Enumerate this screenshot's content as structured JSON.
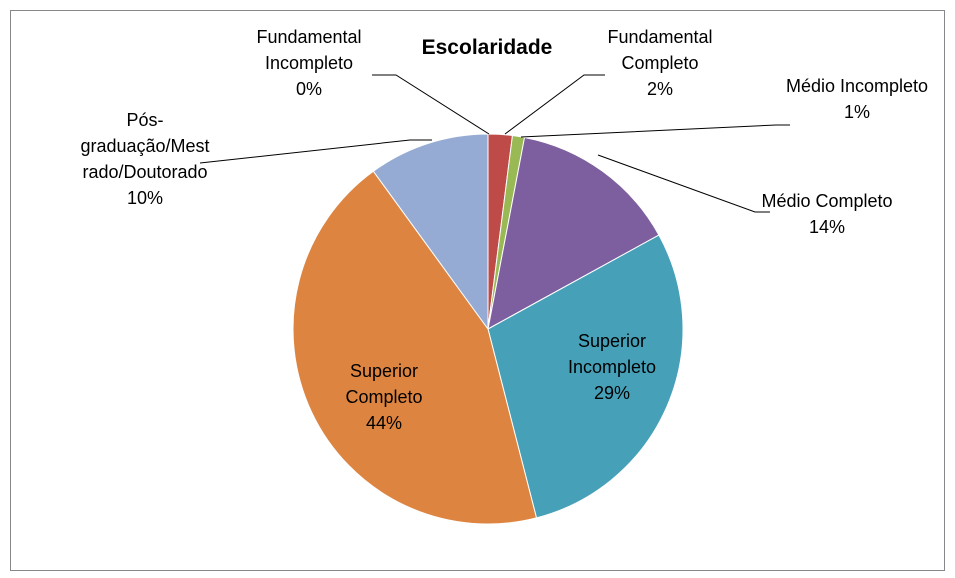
{
  "chart_data": {
    "type": "pie",
    "title": "Escolaridade",
    "categories": [
      "Fundamental Incompleto",
      "Fundamental Completo",
      "Médio Incompleto",
      "Médio Completo",
      "Superior Incompleto",
      "Superior Completo",
      "Pós-graduação/Mestrado/Doutorado"
    ],
    "values": [
      0,
      2,
      1,
      14,
      29,
      44,
      10
    ],
    "value_labels": [
      "0%",
      "2%",
      "1%",
      "14%",
      "29%",
      "44%",
      "10%"
    ],
    "colors": [
      "#4a7ebb",
      "#be4b48",
      "#98b954",
      "#7d5f9f",
      "#46a0b8",
      "#dd8440",
      "#95abd3"
    ]
  }
}
